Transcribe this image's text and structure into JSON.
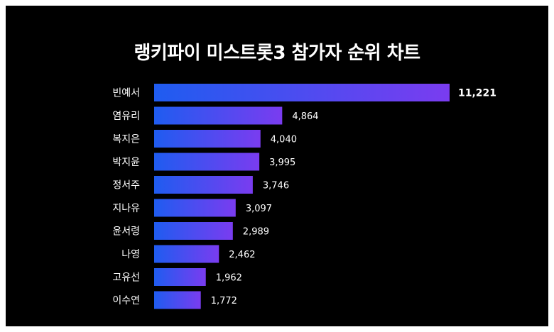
{
  "chart_data": {
    "type": "bar",
    "orientation": "horizontal",
    "title": "랭키파이 미스트롯3 참가자 순위 차트",
    "categories": [
      "빈예서",
      "염유리",
      "복지은",
      "박지윤",
      "정서주",
      "지나유",
      "윤서령",
      "나영",
      "고유선",
      "이수연"
    ],
    "values": [
      11221,
      4864,
      4040,
      3995,
      3746,
      3097,
      2989,
      2462,
      1962,
      1772
    ],
    "value_labels": [
      "11,221",
      "4,864",
      "4,040",
      "3,995",
      "3,746",
      "3,097",
      "2,989",
      "2,462",
      "1,962",
      "1,772"
    ],
    "xlim": [
      0,
      11221
    ],
    "grid": false,
    "legend": "none",
    "colors": {
      "background": "#000000",
      "bar_start": "#1f5cf0",
      "bar_end": "#7a3cf0",
      "text": "#ffffff"
    }
  }
}
